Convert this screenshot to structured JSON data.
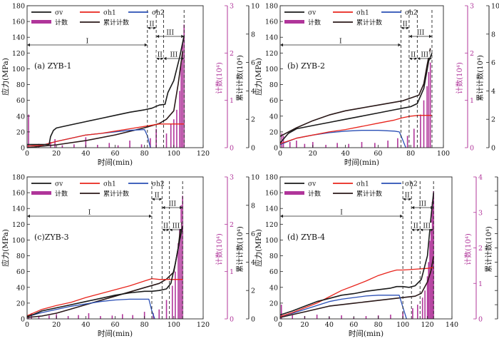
{
  "colors": {
    "sigma_v": "#1a1a1a",
    "sigma_h1": "#e8241c",
    "sigma_h2": "#2a4fb5",
    "count": "#b0359a",
    "cumulative": "#2a1818",
    "stage_line": "#222222",
    "frame": "#222222"
  },
  "chart_data": [
    {
      "type": "line",
      "panel_label": "(a) ZYB-1",
      "xlabel": "时间(min)",
      "ylabel": "应力(MPa)",
      "y2label": "计数(10⁴)",
      "y3label": "累计计数(10⁴)",
      "xlim": [
        0,
        120
      ],
      "ylim": [
        0,
        180
      ],
      "y2lim": [
        0,
        3
      ],
      "y3lim": [
        0,
        10
      ],
      "xticks": [
        "0",
        "20",
        "40",
        "60",
        "80",
        "100",
        "120"
      ],
      "yticks": [
        "0",
        "20",
        "40",
        "60",
        "80",
        "100",
        "120",
        "140",
        "160",
        "180"
      ],
      "y2ticks": [
        "0",
        "1",
        "2",
        "3"
      ],
      "y3ticks": [
        "0",
        "2",
        "4",
        "6",
        "8",
        "10"
      ],
      "legend": {
        "sv": "σv",
        "sh1": "σh1",
        "sh2": "σh2",
        "count": "计数",
        "cum": "累计计数"
      },
      "stages": [
        {
          "label": "I",
          "from": 0,
          "to": 82,
          "row": 0
        },
        {
          "label": "II",
          "from": 82,
          "to": 88,
          "row": 1
        },
        {
          "label": "III",
          "from": 88,
          "to": 107,
          "row": 2
        },
        {
          "label": "II",
          "from": 88,
          "to": 93,
          "row": 3
        },
        {
          "label": "III",
          "from": 93,
          "to": 107,
          "row": 3
        }
      ],
      "stage_lines": [
        82,
        88,
        93,
        107
      ],
      "series": [
        {
          "key": "sv",
          "x": [
            0,
            15,
            16,
            18,
            20,
            30,
            40,
            50,
            60,
            70,
            80,
            85,
            90,
            94,
            96,
            100,
            104,
            107
          ],
          "y": [
            4,
            4,
            14,
            22,
            25,
            29,
            33,
            37,
            41,
            45,
            48,
            50,
            54,
            55,
            70,
            85,
            115,
            142
          ]
        },
        {
          "key": "sh1",
          "x": [
            0,
            10,
            20,
            30,
            40,
            50,
            60,
            70,
            80,
            90,
            100,
            107
          ],
          "y": [
            2,
            3,
            8,
            12,
            16,
            18,
            21,
            24,
            27,
            30,
            30,
            30
          ]
        },
        {
          "key": "sh2",
          "x": [
            0,
            10,
            20,
            30,
            40,
            50,
            60,
            70,
            80,
            82,
            84
          ],
          "y": [
            2,
            3,
            8,
            12,
            16,
            18,
            20,
            22,
            23,
            15,
            0
          ]
        },
        {
          "key": "cum",
          "x": [
            0,
            20,
            40,
            60,
            80,
            90,
            95,
            100,
            103,
            106
          ],
          "y": [
            0,
            0.2,
            0.5,
            0.9,
            1.4,
            1.7,
            2.0,
            2.6,
            4.5,
            6.8
          ]
        },
        {
          "key": "count",
          "x": [
            1,
            8,
            16,
            19,
            24,
            32,
            40,
            48,
            56,
            62,
            70,
            78,
            84,
            88,
            95,
            98,
            100,
            102,
            104,
            105,
            106,
            107
          ],
          "y": [
            0.7,
            0.08,
            0.12,
            0.18,
            0.05,
            0.07,
            0.22,
            0.06,
            0.1,
            0.05,
            0.15,
            0.07,
            0.2,
            0.4,
            0.3,
            0.5,
            0.6,
            0.8,
            1.2,
            1.8,
            2.2,
            2.6
          ]
        }
      ]
    },
    {
      "type": "line",
      "panel_label": "(b) ZYB-2",
      "xlabel": "时间(min)",
      "ylabel": "应力(MPa)",
      "y2label": "计数(10⁴)",
      "y3label": "累计计数(10⁴)",
      "xlim": [
        0,
        100
      ],
      "ylim": [
        0,
        180
      ],
      "y2lim": [
        0,
        3
      ],
      "y3lim": [
        0,
        10
      ],
      "xticks": [
        "0",
        "20",
        "40",
        "60",
        "80",
        "100"
      ],
      "yticks": [
        "0",
        "20",
        "40",
        "60",
        "80",
        "100",
        "120",
        "140",
        "160",
        "180"
      ],
      "y2ticks": [
        "0",
        "1",
        "2",
        "3"
      ],
      "y3ticks": [
        "0",
        "2",
        "4",
        "6",
        "8",
        "10"
      ],
      "legend": {
        "sv": "σv",
        "sh1": "σh1",
        "sh2": "σh2",
        "count": "计数",
        "cum": "累计计数"
      },
      "stages": [
        {
          "label": "I",
          "from": 0,
          "to": 74,
          "row": 0
        },
        {
          "label": "II",
          "from": 74,
          "to": 79,
          "row": 1
        },
        {
          "label": "III",
          "from": 79,
          "to": 93,
          "row": 2
        },
        {
          "label": "II",
          "from": 79,
          "to": 84,
          "row": 3
        },
        {
          "label": "III",
          "from": 84,
          "to": 93,
          "row": 3
        }
      ],
      "stage_lines": [
        74,
        79,
        84,
        93
      ],
      "series": [
        {
          "key": "sv",
          "x": [
            0,
            5,
            10,
            20,
            30,
            40,
            50,
            60,
            70,
            75,
            80,
            84,
            88,
            91,
            93
          ],
          "y": [
            6,
            18,
            24,
            28,
            32,
            36,
            40,
            44,
            48,
            50,
            52,
            56,
            75,
            110,
            120
          ]
        },
        {
          "key": "sh1",
          "x": [
            0,
            10,
            20,
            30,
            40,
            50,
            60,
            70,
            75,
            80,
            85,
            93
          ],
          "y": [
            5,
            12,
            16,
            20,
            23,
            27,
            31,
            35,
            38,
            40,
            41,
            41
          ]
        },
        {
          "key": "sh2",
          "x": [
            0,
            10,
            20,
            30,
            40,
            50,
            60,
            70,
            73,
            75,
            77
          ],
          "y": [
            4,
            12,
            16,
            19,
            21,
            22,
            22,
            21,
            20,
            10,
            0
          ]
        },
        {
          "key": "cum",
          "x": [
            0,
            10,
            20,
            30,
            40,
            50,
            60,
            70,
            75,
            80,
            85,
            88,
            90,
            92
          ],
          "y": [
            0.8,
            1.4,
            1.9,
            2.3,
            2.6,
            2.8,
            3.0,
            3.2,
            3.3,
            3.5,
            3.7,
            4.5,
            5.8,
            7.0
          ]
        },
        {
          "key": "count",
          "x": [
            1,
            2,
            6,
            10,
            15,
            20,
            28,
            35,
            42,
            50,
            58,
            66,
            72,
            78,
            82,
            86,
            88,
            90,
            91,
            92
          ],
          "y": [
            0.3,
            0.25,
            0.12,
            0.15,
            0.08,
            0.12,
            0.06,
            0.1,
            0.08,
            0.12,
            0.1,
            0.15,
            0.2,
            0.25,
            0.4,
            0.7,
            1.0,
            1.3,
            1.6,
            1.8
          ]
        }
      ]
    },
    {
      "type": "line",
      "panel_label": "(c)ZYB-3",
      "xlabel": "时间(min)",
      "ylabel": "应力(MPa)",
      "y2label": "计数(10⁴)",
      "y3label": "累计计数(10⁴)",
      "xlim": [
        0,
        120
      ],
      "ylim": [
        0,
        180
      ],
      "y2lim": [
        0,
        3
      ],
      "y3lim": [
        0,
        10
      ],
      "xticks": [
        "0",
        "20",
        "40",
        "60",
        "80",
        "100",
        "120"
      ],
      "yticks": [
        "0",
        "20",
        "40",
        "60",
        "80",
        "100",
        "120",
        "140",
        "160",
        "180"
      ],
      "y2ticks": [
        "0",
        "1",
        "2",
        "3"
      ],
      "y3ticks": [
        "0",
        "2",
        "4",
        "6",
        "8",
        "10"
      ],
      "legend": {
        "sv": "σv",
        "sh1": "σh1",
        "sh2": "σh2",
        "count": "计数",
        "cum": "累计计数"
      },
      "stages": [
        {
          "label": "I",
          "from": 0,
          "to": 85,
          "row": 0
        },
        {
          "label": "II",
          "from": 85,
          "to": 92,
          "row": 1
        },
        {
          "label": "III",
          "from": 92,
          "to": 106,
          "row": 2
        },
        {
          "label": "II",
          "from": 92,
          "to": 97,
          "row": 3
        },
        {
          "label": "III",
          "from": 97,
          "to": 106,
          "row": 3
        }
      ],
      "stage_lines": [
        85,
        92,
        97,
        106
      ],
      "series": [
        {
          "key": "sv",
          "x": [
            0,
            5,
            10,
            20,
            30,
            40,
            50,
            60,
            70,
            80,
            85,
            90,
            95,
            98,
            101,
            104,
            106
          ],
          "y": [
            3,
            6,
            10,
            14,
            18,
            22,
            26,
            30,
            33,
            35,
            35,
            36,
            38,
            45,
            70,
            100,
            118
          ]
        },
        {
          "key": "sh1",
          "x": [
            0,
            5,
            10,
            20,
            30,
            40,
            50,
            60,
            70,
            80,
            85,
            90,
            95,
            100,
            106
          ],
          "y": [
            4,
            8,
            12,
            17,
            21,
            27,
            32,
            37,
            42,
            48,
            51,
            50,
            50,
            50,
            50
          ]
        },
        {
          "key": "sh2",
          "x": [
            0,
            10,
            20,
            30,
            40,
            50,
            60,
            70,
            80,
            83,
            85,
            87
          ],
          "y": [
            3,
            8,
            12,
            16,
            19,
            22,
            24,
            25,
            25,
            25,
            10,
            0
          ]
        },
        {
          "key": "cum",
          "x": [
            0,
            10,
            20,
            30,
            40,
            50,
            60,
            70,
            80,
            90,
            95,
            100,
            103,
            105
          ],
          "y": [
            0.1,
            0.2,
            0.4,
            0.7,
            1.0,
            1.3,
            1.6,
            1.9,
            2.2,
            2.5,
            2.8,
            3.3,
            5.0,
            6.8
          ]
        },
        {
          "key": "count",
          "x": [
            1,
            3,
            8,
            15,
            20,
            28,
            35,
            42,
            50,
            58,
            65,
            72,
            80,
            86,
            90,
            95,
            99,
            101,
            103,
            104,
            105,
            106
          ],
          "y": [
            0.08,
            0.12,
            0.05,
            0.07,
            0.1,
            0.06,
            0.08,
            0.12,
            0.06,
            0.07,
            0.1,
            0.08,
            0.15,
            0.12,
            0.2,
            0.4,
            0.7,
            1.0,
            1.6,
            1.9,
            2.4,
            2.6
          ]
        }
      ]
    },
    {
      "type": "line",
      "panel_label": "(d) ZYB-4",
      "xlabel": "时间(min)",
      "ylabel": "应力(MPa)",
      "y2label": "计数(10⁴)",
      "y3label": "累计计数(10⁴)",
      "xlim": [
        0,
        140
      ],
      "ylim": [
        0,
        180
      ],
      "y2lim": [
        0,
        4
      ],
      "y3lim": [
        0,
        10
      ],
      "xticks": [
        "0",
        "20",
        "40",
        "60",
        "80",
        "100",
        "120",
        "140"
      ],
      "yticks": [
        "0",
        "20",
        "40",
        "60",
        "80",
        "100",
        "120",
        "140",
        "160",
        "180"
      ],
      "y2ticks": [
        "0",
        "1",
        "2",
        "3",
        "4"
      ],
      "y3ticks": [
        "0",
        "1",
        "2",
        "3",
        "4",
        "5",
        "6",
        "7",
        "8",
        "9",
        "10"
      ],
      "legend": {
        "sv": "σv",
        "sh1": "σh1",
        "sh2": "σh2",
        "count": "计数",
        "cum": "累计计数"
      },
      "stages": [
        {
          "label": "I",
          "from": 0,
          "to": 100,
          "row": 0
        },
        {
          "label": "II",
          "from": 100,
          "to": 107,
          "row": 1
        },
        {
          "label": "III",
          "from": 107,
          "to": 125,
          "row": 2
        },
        {
          "label": "II",
          "from": 107,
          "to": 114,
          "row": 3
        },
        {
          "label": "III",
          "from": 114,
          "to": 125,
          "row": 3
        }
      ],
      "stage_lines": [
        100,
        107,
        114,
        125
      ],
      "series": [
        {
          "key": "sv",
          "x": [
            0,
            10,
            20,
            30,
            40,
            50,
            60,
            70,
            80,
            90,
            95,
            100,
            105,
            110,
            115,
            120,
            123,
            125
          ],
          "y": [
            5,
            10,
            16,
            22,
            26,
            30,
            32,
            35,
            37,
            39,
            41,
            41,
            40,
            42,
            50,
            80,
            130,
            160
          ]
        },
        {
          "key": "sh1",
          "x": [
            0,
            10,
            20,
            30,
            40,
            50,
            60,
            70,
            80,
            90,
            95,
            100,
            110,
            120,
            125
          ],
          "y": [
            3,
            8,
            14,
            20,
            28,
            36,
            42,
            48,
            55,
            60,
            62,
            62,
            63,
            64,
            65
          ]
        },
        {
          "key": "sh2",
          "x": [
            0,
            10,
            20,
            30,
            40,
            50,
            60,
            70,
            80,
            90,
            97,
            100,
            103
          ],
          "y": [
            3,
            7,
            12,
            17,
            22,
            25,
            27,
            29,
            30,
            30,
            30,
            15,
            0
          ]
        },
        {
          "key": "cum",
          "x": [
            0,
            10,
            20,
            30,
            40,
            50,
            60,
            70,
            80,
            90,
            100,
            110,
            115,
            120,
            123,
            125
          ],
          "y": [
            0.1,
            0.3,
            0.5,
            0.7,
            0.9,
            1.0,
            1.1,
            1.2,
            1.3,
            1.4,
            1.5,
            1.6,
            1.8,
            2.6,
            3.4,
            4.4
          ]
        },
        {
          "key": "count",
          "x": [
            1,
            10,
            20,
            30,
            40,
            50,
            60,
            70,
            80,
            90,
            100,
            108,
            112,
            116,
            118,
            120,
            121,
            122,
            123,
            124,
            125
          ],
          "y": [
            0.4,
            0.1,
            0.08,
            0.12,
            0.06,
            0.1,
            0.05,
            0.08,
            0.1,
            0.12,
            0.2,
            0.3,
            0.4,
            0.6,
            0.8,
            1.2,
            1.6,
            2.2,
            2.8,
            3.3,
            3.6
          ]
        }
      ]
    }
  ]
}
